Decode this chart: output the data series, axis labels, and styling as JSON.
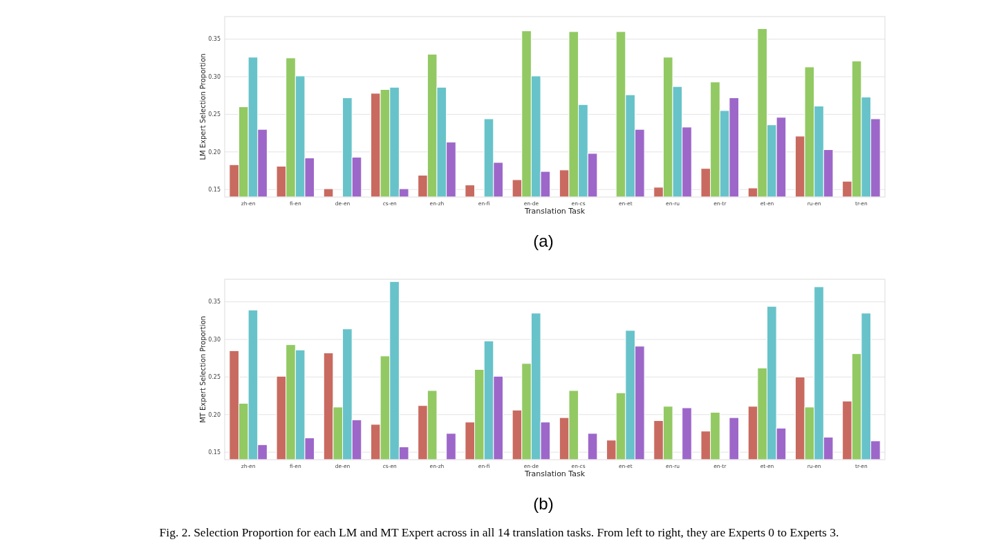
{
  "chart_data": [
    {
      "type": "bar",
      "xlabel": "Translation Task",
      "ylabel": "LM Expert Selection Proportion",
      "categories": [
        "zh-en",
        "fi-en",
        "de-en",
        "cs-en",
        "en-zh",
        "en-fi",
        "en-de",
        "en-cs",
        "en-et",
        "en-ru",
        "en-tr",
        "et-en",
        "ru-en",
        "tr-en"
      ],
      "series": [
        {
          "color": "#c96a60",
          "values": [
            0.183,
            0.181,
            0.151,
            0.278,
            0.169,
            0.156,
            0.163,
            0.176,
            null,
            0.153,
            0.178,
            0.152,
            0.221,
            0.161
          ]
        },
        {
          "color": "#92c963",
          "values": [
            0.26,
            0.325,
            null,
            0.283,
            0.33,
            null,
            0.361,
            0.36,
            0.36,
            0.326,
            0.293,
            0.364,
            0.313,
            0.321
          ]
        },
        {
          "color": "#67c3c9",
          "values": [
            0.326,
            0.301,
            0.272,
            0.286,
            0.286,
            0.244,
            0.301,
            0.263,
            0.276,
            0.287,
            0.255,
            0.236,
            0.261,
            0.273
          ]
        },
        {
          "color": "#9d67c9",
          "values": [
            0.23,
            0.192,
            0.193,
            0.151,
            0.213,
            0.186,
            0.174,
            0.198,
            0.23,
            0.233,
            0.272,
            0.246,
            0.203,
            0.244
          ]
        }
      ],
      "ylim": [
        0.14,
        0.38
      ],
      "yticks": [
        {
          "value": 0.15,
          "label": "0.15"
        },
        {
          "value": 0.2,
          "label": "0.20"
        },
        {
          "value": 0.25,
          "label": "0.25"
        },
        {
          "value": 0.3,
          "label": "0.30"
        },
        {
          "value": 0.35,
          "label": "0.35"
        }
      ],
      "grid": "y",
      "annotations": [
        "(a)"
      ]
    },
    {
      "type": "bar",
      "xlabel": "Translation Task",
      "ylabel": "MT Expert Selection Proportion",
      "categories": [
        "zh-en",
        "fi-en",
        "de-en",
        "cs-en",
        "en-zh",
        "en-fi",
        "en-de",
        "en-cs",
        "en-et",
        "en-ru",
        "en-tr",
        "et-en",
        "ru-en",
        "tr-en"
      ],
      "series": [
        {
          "color": "#c96a60",
          "values": [
            0.285,
            0.251,
            0.282,
            0.187,
            0.212,
            0.19,
            0.206,
            0.196,
            0.166,
            0.192,
            0.178,
            0.211,
            0.25,
            0.218
          ]
        },
        {
          "color": "#92c963",
          "values": [
            0.215,
            0.293,
            0.21,
            0.278,
            0.232,
            0.26,
            0.268,
            0.232,
            0.229,
            0.211,
            0.203,
            0.262,
            0.21,
            0.281
          ]
        },
        {
          "color": "#67c3c9",
          "values": [
            0.339,
            0.286,
            0.314,
            0.377,
            null,
            0.298,
            0.335,
            null,
            0.312,
            null,
            null,
            0.344,
            0.37,
            0.335
          ]
        },
        {
          "color": "#9d67c9",
          "values": [
            0.16,
            0.169,
            0.193,
            0.157,
            0.175,
            0.251,
            0.19,
            0.175,
            0.291,
            0.209,
            0.196,
            0.182,
            0.17,
            0.165
          ]
        }
      ],
      "ylim": [
        0.14,
        0.38
      ],
      "yticks": [
        {
          "value": 0.15,
          "label": "0.15"
        },
        {
          "value": 0.2,
          "label": "0.20"
        },
        {
          "value": 0.25,
          "label": "0.25"
        },
        {
          "value": 0.3,
          "label": "0.30"
        },
        {
          "value": 0.35,
          "label": "0.35"
        }
      ],
      "grid": "y",
      "annotations": [
        "(b)",
        "Fig. 2.  Selection Proportion for each LM and MT Expert across in all 14 translation tasks. From left to right, they are Experts 0 to Experts 3."
      ]
    }
  ]
}
